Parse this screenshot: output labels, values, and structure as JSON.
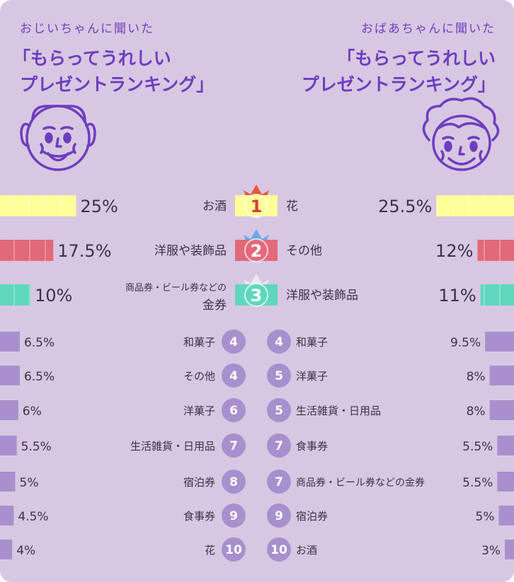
{
  "colors": {
    "background": "#d8c7e2",
    "title_text": "#6e3dbf",
    "gold": "#ffff99",
    "pink": "#e2697a",
    "teal": "#5ed7bd",
    "purple": "#a88fce",
    "badge_text": "#ffffff",
    "rank1_text": "#d93b3b",
    "rank3_text": "#ffffff",
    "label_text": "#3a3148"
  },
  "left_panel": {
    "subtitle": "おじいちゃんに聞いた",
    "title_line1": "「もらってうれしい",
    "title_line2": "プレゼントランキング」",
    "face_icon": "grandpa-face-icon"
  },
  "right_panel": {
    "subtitle": "おばあちゃんに聞いた",
    "title_line1": "「もらってうれしい",
    "title_line2": "プレゼントランキング」",
    "face_icon": "grandma-face-icon"
  },
  "chart_data": {
    "type": "bar",
    "unit": "%",
    "series": [
      {
        "side": "left",
        "name": "おじいちゃん",
        "items": [
          {
            "rank": "1",
            "label": "お酒",
            "value": 25,
            "value_label": "25%"
          },
          {
            "rank": "2",
            "label": "洋服や装飾品",
            "value": 17.5,
            "value_label": "17.5%"
          },
          {
            "rank": "3",
            "label_line1": "商品券・ビール券などの",
            "label": "金券",
            "value": 10,
            "value_label": "10%"
          },
          {
            "rank": "4",
            "label": "和菓子",
            "value": 6.5,
            "value_label": "6.5%"
          },
          {
            "rank": "4",
            "label": "その他",
            "value": 6.5,
            "value_label": "6.5%"
          },
          {
            "rank": "6",
            "label": "洋菓子",
            "value": 6,
            "value_label": "6%"
          },
          {
            "rank": "7",
            "label": "生活雑貨・日用品",
            "value": 5.5,
            "value_label": "5.5%"
          },
          {
            "rank": "8",
            "label": "宿泊券",
            "value": 5,
            "value_label": "5%"
          },
          {
            "rank": "9",
            "label": "食事券",
            "value": 4.5,
            "value_label": "4.5%"
          },
          {
            "rank": "10",
            "label": "花",
            "value": 4,
            "value_label": "4%"
          }
        ]
      },
      {
        "side": "right",
        "name": "おばあちゃん",
        "items": [
          {
            "rank": "1",
            "label": "花",
            "value": 25.5,
            "value_label": "25.5%"
          },
          {
            "rank": "2",
            "label": "その他",
            "value": 12,
            "value_label": "12%"
          },
          {
            "rank": "3",
            "label": "洋服や装飾品",
            "value": 11,
            "value_label": "11%"
          },
          {
            "rank": "4",
            "label": "和菓子",
            "value": 9.5,
            "value_label": "9.5%"
          },
          {
            "rank": "5",
            "label": "洋菓子",
            "value": 8,
            "value_label": "8%"
          },
          {
            "rank": "5",
            "label": "生活雑貨・日用品",
            "value": 8,
            "value_label": "8%"
          },
          {
            "rank": "7",
            "label": "食事券",
            "value": 5.5,
            "value_label": "5.5%"
          },
          {
            "rank": "7",
            "label": "商品券・ビール券などの金券",
            "value": 5.5,
            "value_label": "5.5%"
          },
          {
            "rank": "9",
            "label": "宿泊券",
            "value": 5,
            "value_label": "5%"
          },
          {
            "rank": "10",
            "label": "お酒",
            "value": 3,
            "value_label": "3%"
          }
        ]
      }
    ]
  }
}
